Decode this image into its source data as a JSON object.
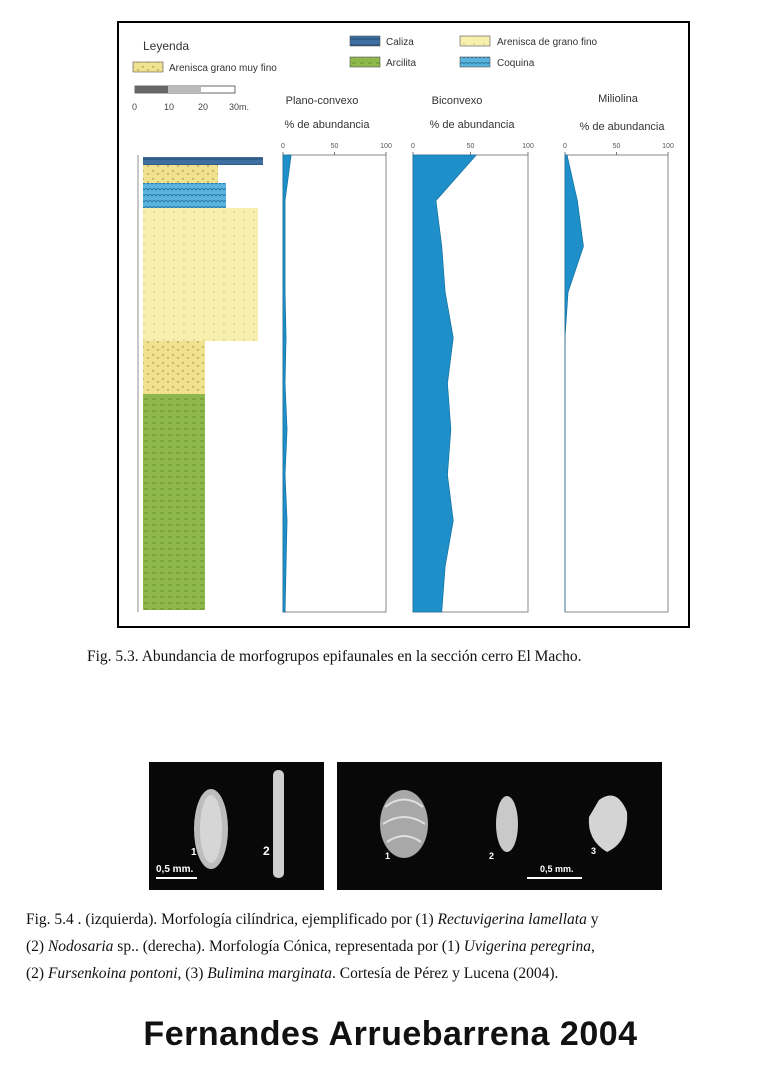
{
  "legend": {
    "title": "Leyenda",
    "items": [
      {
        "label": "Caliza",
        "color": "#3e6fa0"
      },
      {
        "label": "Arenisca de grano fino",
        "color": "#f4ec9c"
      },
      {
        "label": "Arenisca grano muy fino",
        "color": "#e7dd8a"
      },
      {
        "label": "Arcilita",
        "color": "#8fb84c"
      },
      {
        "label": "Coquina",
        "color": "#5ab3dc"
      }
    ],
    "scale_ticks": [
      "0",
      "10",
      "20",
      "30m."
    ]
  },
  "figure1": {
    "caption": "Fig. 5.3. Abundancia de morfogrupos epifaunales en la sección cerro El Macho.",
    "panels": [
      {
        "title": "Plano-convexo",
        "subtitle": "% de abundancia",
        "ticks": [
          "0",
          "50",
          "100"
        ]
      },
      {
        "title": "Biconvexo",
        "subtitle": "% de abundancia",
        "ticks": [
          "0",
          "50",
          "100"
        ]
      },
      {
        "title": "Miliolina",
        "subtitle": "% de abundancia",
        "ticks": [
          "0",
          "50",
          "100"
        ]
      }
    ]
  },
  "chart_data": [
    {
      "type": "area",
      "title": "Plano-convexo",
      "xlabel": "% de abundancia",
      "xlim": [
        0,
        100
      ],
      "y": [
        0,
        10,
        20,
        30,
        40,
        50,
        60,
        70,
        80,
        90,
        100
      ],
      "values": [
        2,
        3,
        4,
        2,
        4,
        2,
        3,
        2,
        2,
        2,
        8
      ]
    },
    {
      "type": "area",
      "title": "Biconvexo",
      "xlabel": "% de abundancia",
      "xlim": [
        0,
        100
      ],
      "y": [
        0,
        10,
        20,
        30,
        40,
        50,
        60,
        70,
        80,
        90,
        100
      ],
      "values": [
        25,
        28,
        35,
        30,
        33,
        30,
        35,
        28,
        25,
        20,
        55
      ]
    },
    {
      "type": "area",
      "title": "Miliolina",
      "xlabel": "% de abundancia",
      "xlim": [
        0,
        100
      ],
      "y": [
        0,
        10,
        20,
        30,
        40,
        50,
        60,
        70,
        80,
        90,
        100
      ],
      "values": [
        0,
        0,
        0,
        0,
        0,
        0,
        0,
        3,
        18,
        12,
        2
      ]
    }
  ],
  "photos": {
    "left": {
      "labels": [
        "1",
        "2"
      ],
      "scale": "0,5 mm."
    },
    "right": {
      "labels": [
        "1",
        "2",
        "3"
      ],
      "scale": "0,5 mm."
    }
  },
  "figure2": {
    "line1": {
      "a": "Fig. 5.4 . (izquierda). Morfología cilíndrica, ejemplificado por (1) ",
      "b": "Rectuvigerina lamellata",
      "c": " y"
    },
    "line2": {
      "a": "(2) ",
      "b": "Nodosaria",
      "c": " sp.. (derecha). Morfología Cónica, representada por (1) ",
      "d": "Uvigerina peregrina",
      "e": ","
    },
    "line3": {
      "a": "(2) ",
      "b": "Fursenkoina pontoni",
      "c": ", (3) ",
      "d": "Bulimina marginata",
      "e": ". Cortesía de Pérez y Lucena (2004)."
    }
  },
  "footer": {
    "title": "Fernandes Arruebarrena 2004"
  }
}
